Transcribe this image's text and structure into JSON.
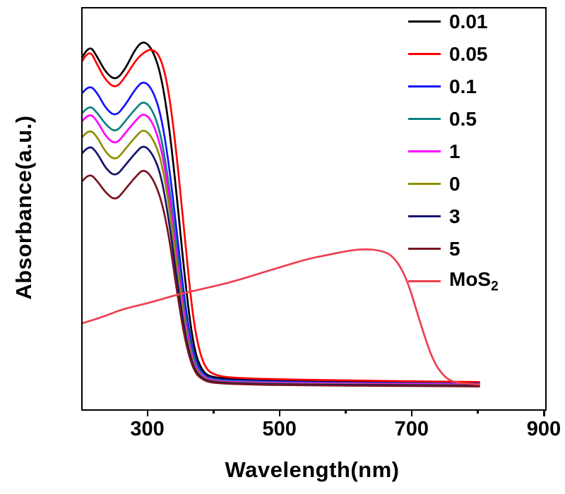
{
  "chart_data": {
    "type": "line",
    "title": "",
    "xlabel": "Wavelength(nm)",
    "ylabel": "Absorbance(a.u.)",
    "xlim": [
      200,
      900
    ],
    "ylim": [
      0,
      1
    ],
    "x_ticks": [
      300,
      500,
      700,
      900
    ],
    "x_minor_ticks": [
      400,
      600,
      800
    ],
    "y_ticks": [],
    "grid": false,
    "legend_position": "top-right",
    "axis_color": "#000000",
    "background_color": "#ffffff",
    "series": [
      {
        "name": "0.01",
        "label": "0.01",
        "label_sub": "",
        "color": "#000000",
        "x": [
          200,
          210,
          222,
          235,
          250,
          265,
          280,
          292,
          305,
          318,
          330,
          342,
          355,
          368,
          382,
          400,
          450,
          520,
          600,
          700,
          800
        ],
        "y": [
          0.88,
          0.91,
          0.88,
          0.84,
          0.82,
          0.85,
          0.9,
          0.92,
          0.9,
          0.84,
          0.72,
          0.54,
          0.32,
          0.15,
          0.09,
          0.078,
          0.074,
          0.071,
          0.069,
          0.067,
          0.066
        ]
      },
      {
        "name": "0.05",
        "label": "0.05",
        "label_sub": "",
        "color": "#ff0000",
        "x": [
          200,
          210,
          222,
          235,
          250,
          265,
          280,
          292,
          305,
          318,
          330,
          342,
          355,
          368,
          382,
          400,
          450,
          520,
          600,
          700,
          800
        ],
        "y": [
          0.87,
          0.9,
          0.86,
          0.82,
          0.8,
          0.83,
          0.87,
          0.89,
          0.9,
          0.88,
          0.8,
          0.64,
          0.42,
          0.21,
          0.11,
          0.082,
          0.077,
          0.074,
          0.072,
          0.07,
          0.068
        ]
      },
      {
        "name": "0.1",
        "label": "0.1",
        "label_sub": "",
        "color": "#1414ff",
        "x": [
          200,
          210,
          222,
          235,
          250,
          265,
          280,
          292,
          305,
          318,
          330,
          342,
          355,
          368,
          382,
          400,
          450,
          520,
          600,
          700,
          800
        ],
        "y": [
          0.79,
          0.81,
          0.79,
          0.75,
          0.73,
          0.76,
          0.8,
          0.82,
          0.8,
          0.74,
          0.62,
          0.45,
          0.26,
          0.13,
          0.086,
          0.074,
          0.071,
          0.068,
          0.066,
          0.065,
          0.064
        ]
      },
      {
        "name": "0.5",
        "label": "0.5",
        "label_sub": "",
        "color": "#0e8282",
        "x": [
          200,
          210,
          222,
          235,
          250,
          265,
          280,
          292,
          305,
          318,
          330,
          342,
          355,
          368,
          382,
          400,
          450,
          520,
          600,
          700,
          800
        ],
        "y": [
          0.74,
          0.76,
          0.74,
          0.71,
          0.69,
          0.72,
          0.75,
          0.77,
          0.75,
          0.69,
          0.57,
          0.41,
          0.23,
          0.12,
          0.082,
          0.072,
          0.069,
          0.066,
          0.065,
          0.064,
          0.063
        ]
      },
      {
        "name": "1",
        "label": "1",
        "label_sub": "",
        "color": "#ff00ff",
        "x": [
          200,
          210,
          222,
          235,
          250,
          265,
          280,
          292,
          305,
          318,
          330,
          342,
          355,
          368,
          382,
          400,
          450,
          520,
          600,
          700,
          800
        ],
        "y": [
          0.72,
          0.74,
          0.72,
          0.68,
          0.66,
          0.69,
          0.72,
          0.74,
          0.72,
          0.66,
          0.55,
          0.38,
          0.215,
          0.11,
          0.08,
          0.07,
          0.067,
          0.065,
          0.064,
          0.063,
          0.062
        ]
      },
      {
        "name": "0",
        "label": "0",
        "label_sub": "",
        "color": "#8f8f00",
        "x": [
          200,
          210,
          222,
          235,
          250,
          265,
          280,
          292,
          305,
          318,
          330,
          342,
          355,
          368,
          382,
          400,
          450,
          520,
          600,
          700,
          800
        ],
        "y": [
          0.68,
          0.7,
          0.68,
          0.64,
          0.62,
          0.65,
          0.68,
          0.7,
          0.68,
          0.63,
          0.52,
          0.36,
          0.2,
          0.105,
          0.077,
          0.068,
          0.065,
          0.063,
          0.062,
          0.061,
          0.06
        ]
      },
      {
        "name": "3",
        "label": "3",
        "label_sub": "",
        "color": "#14146e",
        "x": [
          200,
          210,
          222,
          235,
          250,
          265,
          280,
          292,
          305,
          318,
          330,
          342,
          355,
          368,
          382,
          400,
          450,
          520,
          600,
          700,
          800
        ],
        "y": [
          0.64,
          0.66,
          0.64,
          0.6,
          0.58,
          0.61,
          0.64,
          0.66,
          0.64,
          0.59,
          0.48,
          0.33,
          0.185,
          0.1,
          0.075,
          0.067,
          0.064,
          0.062,
          0.061,
          0.06,
          0.059
        ]
      },
      {
        "name": "5",
        "label": "5",
        "label_sub": "",
        "color": "#7a1420",
        "x": [
          200,
          210,
          222,
          235,
          250,
          265,
          280,
          292,
          305,
          318,
          330,
          342,
          355,
          368,
          382,
          400,
          450,
          520,
          600,
          700,
          800
        ],
        "y": [
          0.57,
          0.59,
          0.57,
          0.54,
          0.52,
          0.55,
          0.58,
          0.6,
          0.58,
          0.53,
          0.44,
          0.3,
          0.17,
          0.095,
          0.072,
          0.065,
          0.062,
          0.06,
          0.059,
          0.058,
          0.057
        ]
      },
      {
        "name": "MoS2",
        "label": "MoS",
        "label_sub": "2",
        "color": "#ee4050",
        "x": [
          200,
          230,
          260,
          300,
          340,
          380,
          420,
          460,
          500,
          540,
          570,
          600,
          625,
          650,
          670,
          690,
          710,
          730,
          750,
          770,
          800
        ],
        "y": [
          0.215,
          0.23,
          0.25,
          0.265,
          0.285,
          0.3,
          0.315,
          0.335,
          0.355,
          0.375,
          0.385,
          0.395,
          0.4,
          0.397,
          0.383,
          0.33,
          0.22,
          0.12,
          0.075,
          0.065,
          0.062
        ]
      }
    ]
  }
}
